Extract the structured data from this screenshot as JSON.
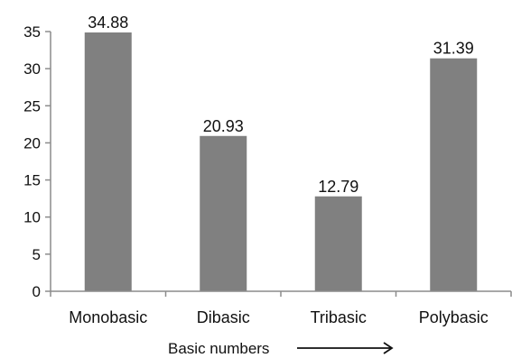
{
  "chart_data": {
    "type": "bar",
    "categories": [
      "Monobasic",
      "Dibasic",
      "Tribasic",
      "Polybasic"
    ],
    "values": [
      34.88,
      20.93,
      12.79,
      31.39
    ],
    "data_labels": [
      "34.88",
      "20.93",
      "12.79",
      "31.39"
    ],
    "title": "",
    "xlabel": "Basic numbers",
    "ylabel": "",
    "ylim": [
      0,
      35
    ],
    "yticks": [
      0,
      5,
      10,
      15,
      20,
      25,
      30,
      35
    ],
    "grid": false,
    "legend": "none",
    "bar_color": "#808080",
    "axis_color": "#8c8c8c",
    "xlabel_arrow": "arrow-right-icon"
  }
}
